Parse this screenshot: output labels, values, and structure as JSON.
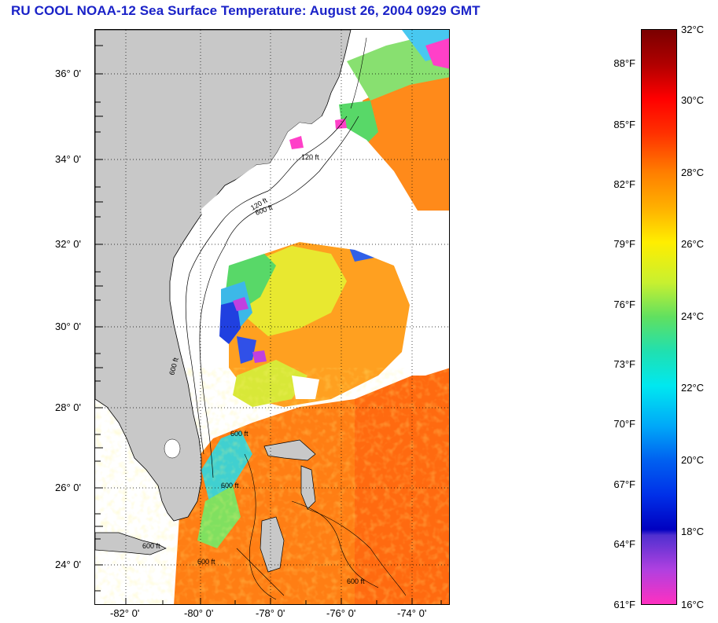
{
  "title": "RU COOL  NOAA-12  Sea Surface Temperature:  August 26, 2004 0929 GMT",
  "map": {
    "lat_labels": [
      "36° 0'",
      "34° 0'",
      "32° 0'",
      "30° 0'",
      "28° 0'",
      "26° 0'",
      "24° 0'"
    ],
    "lon_labels": [
      "-82° 0'",
      "-80° 0'",
      "-78° 0'",
      "-76° 0'",
      "-74° 0'"
    ],
    "contour_labels": [
      "120 ft",
      "600 ft"
    ],
    "colors": {
      "land": "#c8c8c8",
      "cloud": "#ffffff",
      "contour": "#000000"
    }
  },
  "colorbar": {
    "fahrenheit_labels": [
      "88°F",
      "85°F",
      "82°F",
      "79°F",
      "76°F",
      "73°F",
      "70°F",
      "67°F",
      "64°F",
      "61°F"
    ],
    "celsius_labels": [
      "32°C",
      "30°C",
      "28°C",
      "26°C",
      "24°C",
      "22°C",
      "20°C",
      "18°C",
      "16°C"
    ],
    "range_celsius": [
      16,
      32
    ]
  }
}
